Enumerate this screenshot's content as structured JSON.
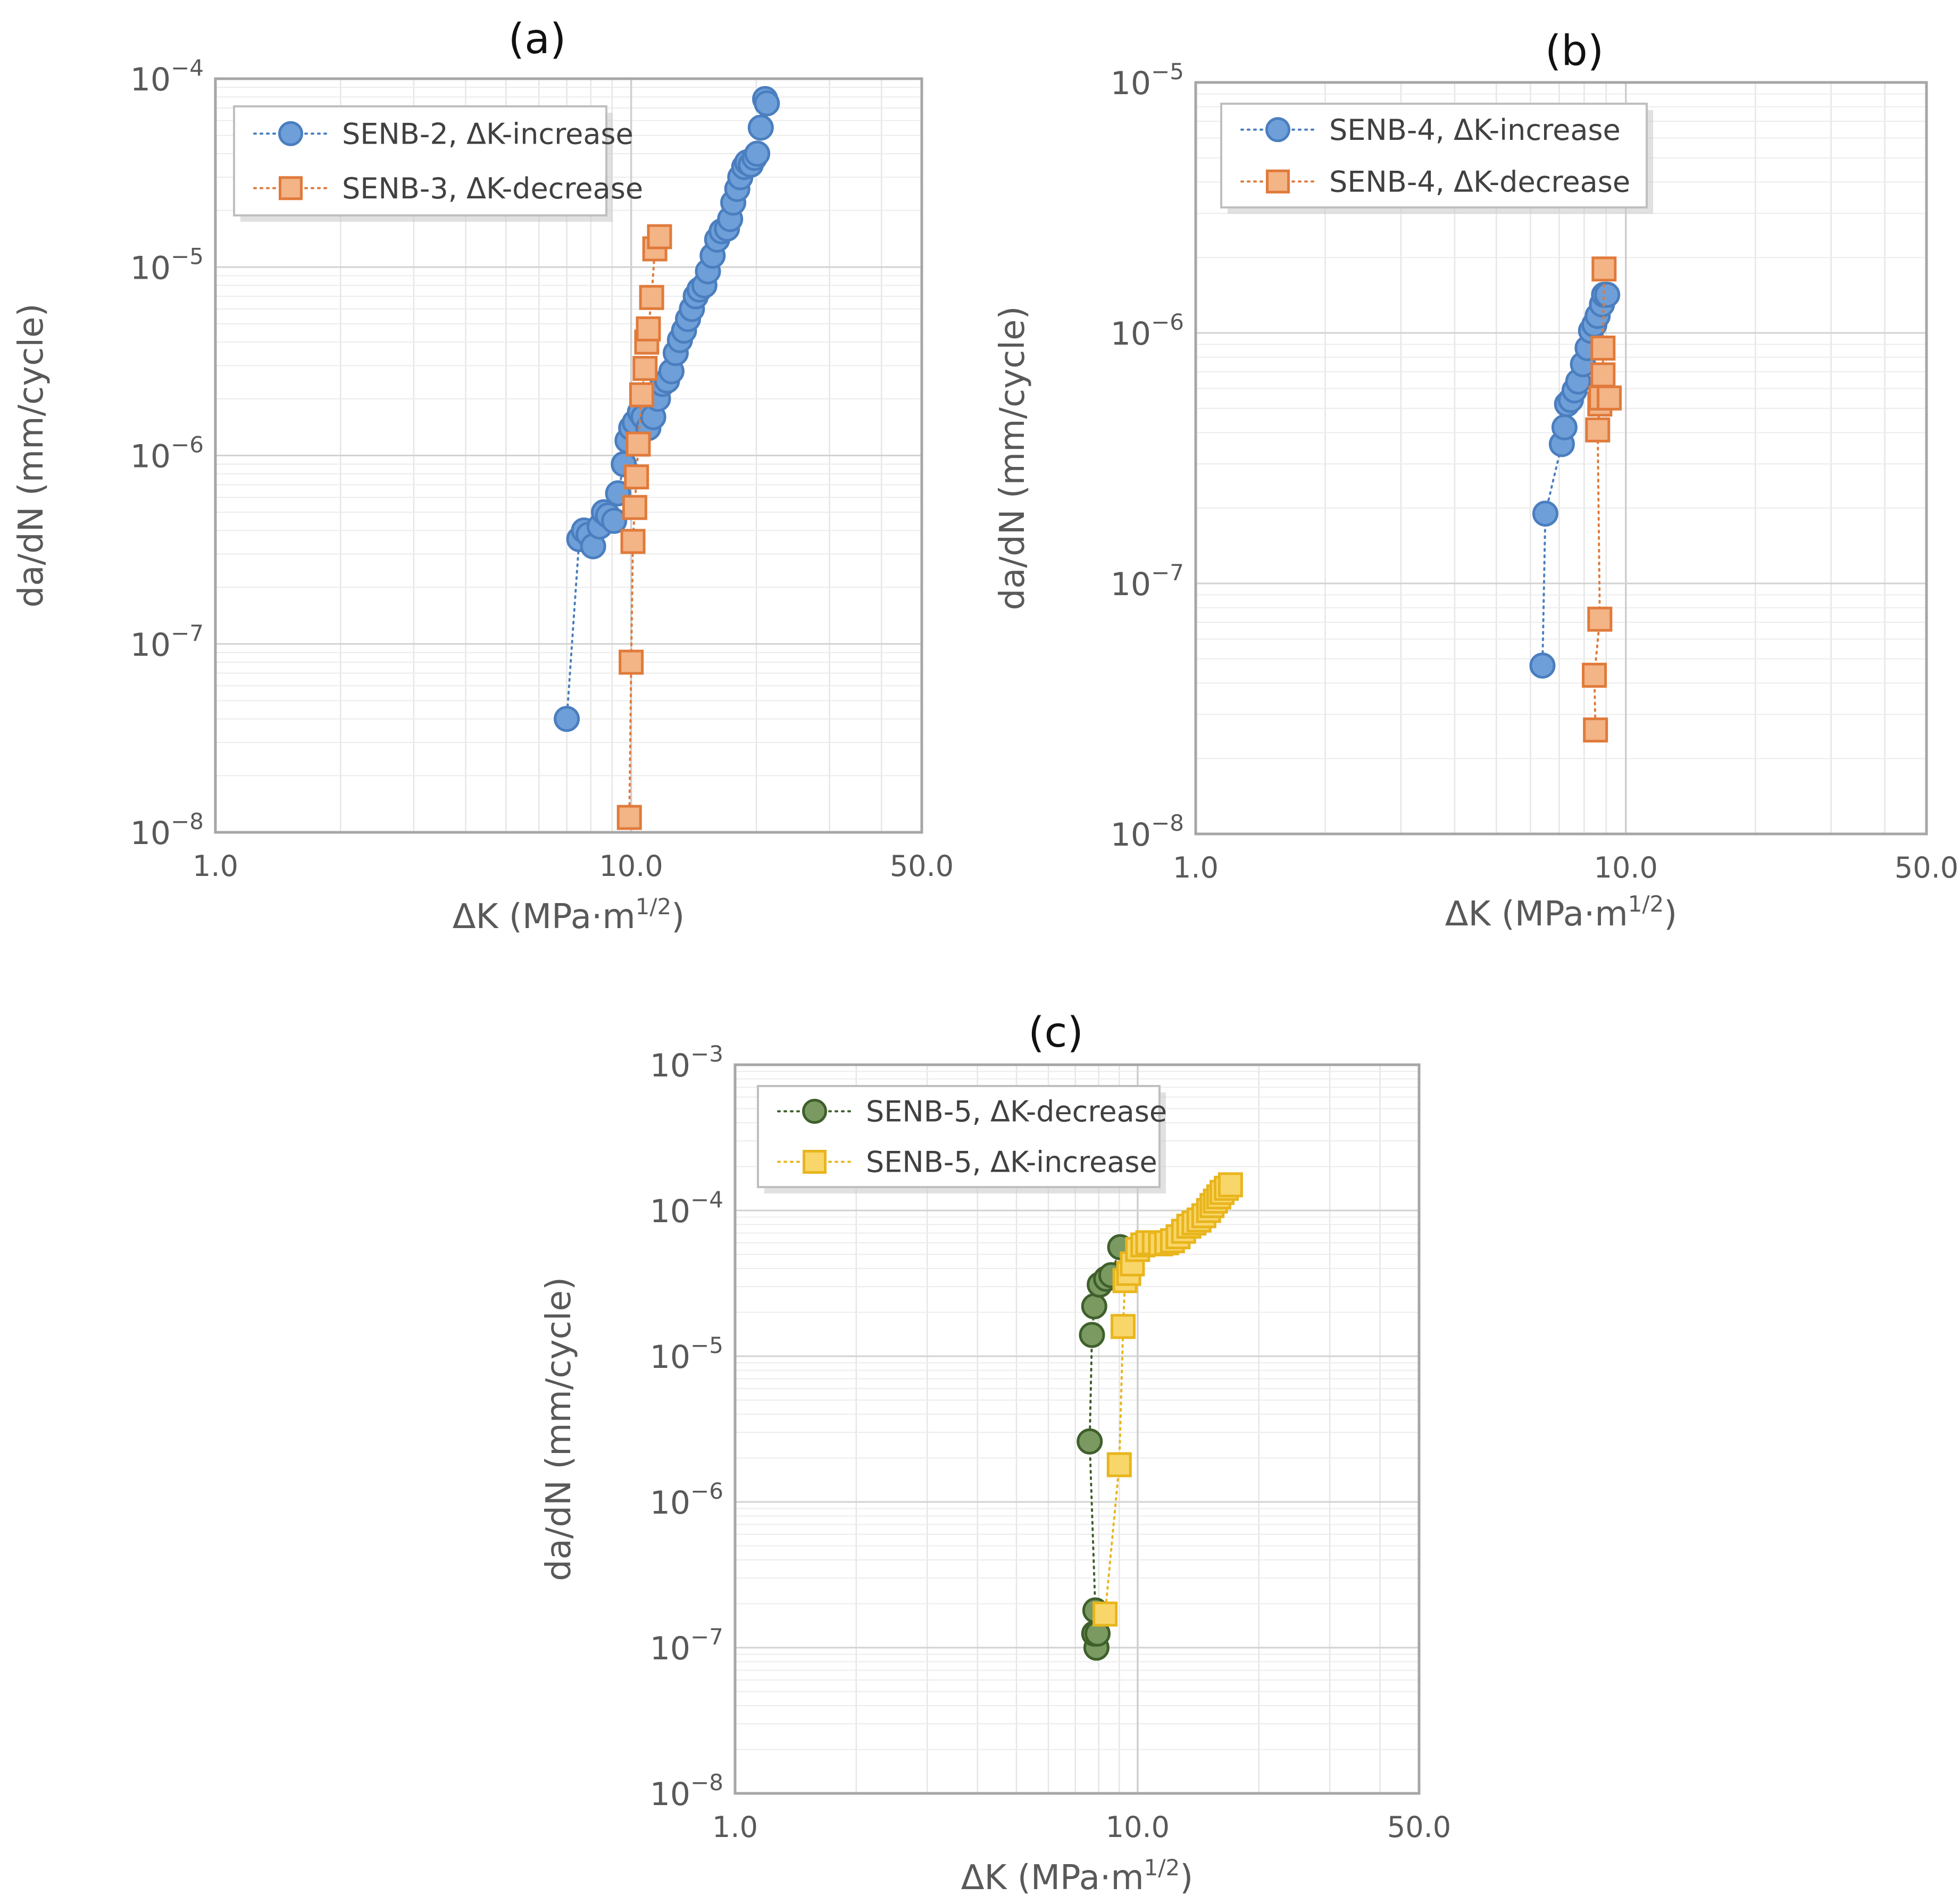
{
  "chart_data": [
    {
      "id": "a",
      "type": "scatter",
      "title": "(a)",
      "xlabel": "ΔK (MPa·m",
      "xlabel_sup": "1/2",
      "xlabel_end": ")",
      "ylabel": "da/dN (mm/cycle)",
      "xscale": "log",
      "yscale": "log",
      "xlim": [
        1.0,
        50.0
      ],
      "ylim": [
        1e-08,
        0.0001
      ],
      "x_ticks": [
        "1.0",
        "10.0",
        "50.0"
      ],
      "y_tick_exponents": [
        "−8",
        "−7",
        "−6",
        "−5",
        "−4"
      ],
      "legend_position": "top-left",
      "series": [
        {
          "name": "SENB-2, ΔK-increase",
          "marker": "circle",
          "color": "#6e9fd8",
          "edge_color": "#4a7ebf",
          "x": [
            7.0,
            7.5,
            7.7,
            7.9,
            8.1,
            8.4,
            8.6,
            8.8,
            9.1,
            9.3,
            9.6,
            9.8,
            10.0,
            10.2,
            10.5,
            10.7,
            11.0,
            11.3,
            11.6,
            11.9,
            12.2,
            12.5,
            12.8,
            13.1,
            13.4,
            13.7,
            14.0,
            14.3,
            14.6,
            15.0,
            15.3,
            15.7,
            16.1,
            16.5,
            17.0,
            17.3,
            17.6,
            18.0,
            18.3,
            18.7,
            19.0,
            19.4,
            19.8,
            20.1,
            20.5,
            21.0,
            21.2
          ],
          "y": [
            4e-08,
            3.6e-07,
            4e-07,
            3.8e-07,
            3.3e-07,
            4.2e-07,
            5e-07,
            4.8e-07,
            4.5e-07,
            6.3e-07,
            9e-07,
            1.2e-06,
            1.4e-06,
            1.5e-06,
            1.7e-06,
            1.6e-06,
            1.4e-06,
            1.6e-06,
            2e-06,
            2.4e-06,
            2.5e-06,
            2.8e-06,
            3.5e-06,
            4.1e-06,
            4.6e-06,
            5.3e-06,
            6e-06,
            7e-06,
            7.6e-06,
            8e-06,
            9.5e-06,
            1.15e-05,
            1.4e-05,
            1.55e-05,
            1.6e-05,
            1.8e-05,
            2.2e-05,
            2.6e-05,
            3e-05,
            3.4e-05,
            3.6e-05,
            3.5e-05,
            3.8e-05,
            4e-05,
            5.5e-05,
            7.8e-05,
            7.4e-05
          ]
        },
        {
          "name": "SENB-3, ΔK-decrease",
          "marker": "square",
          "color": "#f3b486",
          "edge_color": "#e07a3a",
          "x": [
            9.9,
            10.0,
            10.1,
            10.2,
            10.3,
            10.4,
            10.6,
            10.8,
            10.9,
            11.0,
            11.2,
            11.4,
            11.7
          ],
          "y": [
            1.2e-08,
            8e-08,
            3.5e-07,
            5.3e-07,
            7.7e-07,
            1.15e-06,
            2.1e-06,
            2.9e-06,
            4e-06,
            4.7e-06,
            6.9e-06,
            1.25e-05,
            1.45e-05
          ]
        }
      ]
    },
    {
      "id": "b",
      "type": "scatter",
      "title": "(b)",
      "xlabel": "ΔK (MPa·m",
      "xlabel_sup": "1/2",
      "xlabel_end": ")",
      "ylabel": "da/dN (mm/cycle)",
      "xscale": "log",
      "yscale": "log",
      "xlim": [
        1.0,
        50.0
      ],
      "ylim": [
        1e-08,
        1e-05
      ],
      "x_ticks": [
        "1.0",
        "10.0",
        "50.0"
      ],
      "y_tick_exponents": [
        "−8",
        "−7",
        "−6",
        "−5"
      ],
      "legend_position": "top-left",
      "series": [
        {
          "name": "SENB-4, ΔK-increase",
          "marker": "circle",
          "color": "#6e9fd8",
          "edge_color": "#4a7ebf",
          "x": [
            6.4,
            6.5,
            7.1,
            7.2,
            7.3,
            7.45,
            7.6,
            7.75,
            7.95,
            8.15,
            8.3,
            8.45,
            8.6,
            8.8,
            8.9,
            9.05
          ],
          "y": [
            4.7e-08,
            1.9e-07,
            3.6e-07,
            4.2e-07,
            5.2e-07,
            5.4e-07,
            5.9e-07,
            6.4e-07,
            7.5e-07,
            8.7e-07,
            1.02e-06,
            1.08e-06,
            1.17e-06,
            1.3e-06,
            1.42e-06,
            1.42e-06
          ]
        },
        {
          "name": "SENB-4, ΔK-decrease",
          "marker": "square",
          "color": "#f3b486",
          "edge_color": "#e07a3a",
          "x": [
            8.5,
            8.45,
            8.7,
            8.6,
            8.7,
            8.75,
            9.15,
            8.85,
            8.85,
            8.9
          ],
          "y": [
            2.6e-08,
            4.3e-08,
            7.2e-08,
            4.1e-07,
            5.2e-07,
            5.5e-07,
            5.5e-07,
            6.8e-07,
            8.7e-07,
            1.8e-06
          ]
        }
      ]
    },
    {
      "id": "c",
      "type": "scatter",
      "title": "(c)",
      "xlabel": "ΔK (MPa·m",
      "xlabel_sup": "1/2",
      "xlabel_end": ")",
      "ylabel": "da/dN (mm/cycle)",
      "xscale": "log",
      "yscale": "log",
      "xlim": [
        1.0,
        50.0
      ],
      "ylim": [
        1e-08,
        0.001
      ],
      "x_ticks": [
        "1.0",
        "10.0",
        "50.0"
      ],
      "y_tick_exponents": [
        "−8",
        "−7",
        "−6",
        "−5",
        "−4",
        "−3"
      ],
      "legend_position": "top-left",
      "series": [
        {
          "name": "SENB-5, ΔK-decrease",
          "marker": "circle",
          "color": "#7a9a62",
          "edge_color": "#3f5f2b",
          "x": [
            7.9,
            7.8,
            7.95,
            7.85,
            7.6,
            7.7,
            7.8,
            8.05,
            8.35,
            8.6,
            9.05
          ],
          "y": [
            1e-07,
            1.25e-07,
            1.25e-07,
            1.8e-07,
            2.6e-06,
            1.4e-05,
            2.2e-05,
            3.1e-05,
            3.4e-05,
            3.6e-05,
            5.6e-05
          ]
        },
        {
          "name": "SENB-5, ΔK-increase",
          "marker": "square",
          "color": "#f9d66a",
          "edge_color": "#e8b51c",
          "x": [
            8.3,
            9.0,
            9.2,
            9.3,
            9.5,
            9.7,
            10.0,
            10.3,
            10.6,
            11.0,
            11.4,
            11.8,
            12.2,
            12.6,
            13.0,
            13.4,
            13.8,
            14.2,
            14.6,
            15.0,
            15.3,
            15.6,
            15.9,
            16.2,
            16.6,
            17.0
          ],
          "y": [
            1.7e-07,
            1.8e-06,
            1.6e-05,
            3.3e-05,
            3.7e-05,
            4.3e-05,
            5.4e-05,
            5.8e-05,
            6e-05,
            6e-05,
            5.9e-05,
            6e-05,
            6.2e-05,
            6.6e-05,
            7.2e-05,
            7.8e-05,
            8.2e-05,
            8.6e-05,
            9.2e-05,
            0.0001,
            0.000108,
            0.000116,
            0.000124,
            0.000133,
            0.000142,
            0.00015
          ]
        }
      ]
    }
  ]
}
